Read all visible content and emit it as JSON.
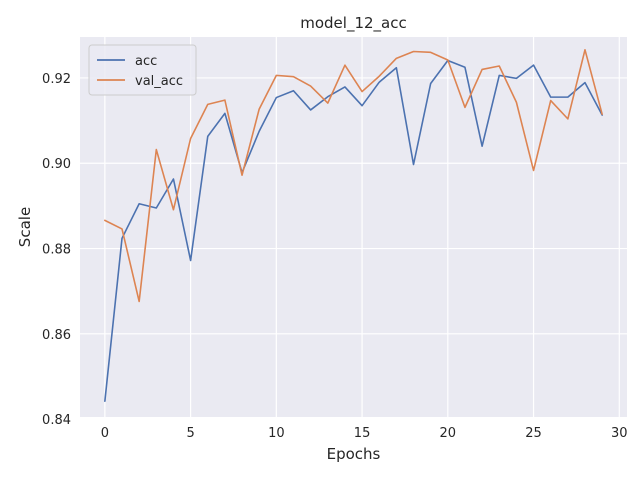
{
  "chart_data": {
    "type": "line",
    "title": "model_12_acc",
    "xlabel": "Epochs",
    "ylabel": "Scale",
    "xlim": [
      -1.45,
      30.45
    ],
    "ylim": [
      0.8405,
      0.9296
    ],
    "xticks": [
      0,
      5,
      10,
      15,
      20,
      25,
      30
    ],
    "yticks": [
      0.84,
      0.86,
      0.88,
      0.9,
      0.92
    ],
    "ytick_labels": [
      "0.84",
      "0.86",
      "0.88",
      "0.90",
      "0.92"
    ],
    "grid": true,
    "legend_position": "upper-left",
    "x": [
      0,
      1,
      2,
      3,
      4,
      5,
      6,
      7,
      8,
      9,
      10,
      11,
      12,
      13,
      14,
      15,
      16,
      17,
      18,
      19,
      20,
      21,
      22,
      23,
      24,
      25,
      26,
      27,
      28,
      29
    ],
    "series": [
      {
        "name": "acc",
        "color": "#4c72b0",
        "values": [
          0.8442,
          0.8824,
          0.8905,
          0.8895,
          0.8963,
          0.8772,
          0.9063,
          0.9117,
          0.8978,
          0.9075,
          0.9154,
          0.917,
          0.9125,
          0.9156,
          0.9179,
          0.9135,
          0.919,
          0.9224,
          0.8997,
          0.9187,
          0.9241,
          0.9225,
          0.904,
          0.9206,
          0.9199,
          0.923,
          0.9155,
          0.9155,
          0.9189,
          0.9113
        ]
      },
      {
        "name": "val_acc",
        "color": "#dd8452",
        "values": [
          0.8866,
          0.8846,
          0.8676,
          0.9032,
          0.8891,
          0.9058,
          0.9138,
          0.9148,
          0.8972,
          0.9127,
          0.9206,
          0.9203,
          0.9181,
          0.9141,
          0.923,
          0.9168,
          0.9204,
          0.9246,
          0.9262,
          0.926,
          0.9242,
          0.9131,
          0.922,
          0.9228,
          0.9143,
          0.8983,
          0.9147,
          0.9104,
          0.9266,
          0.9115
        ]
      }
    ]
  }
}
